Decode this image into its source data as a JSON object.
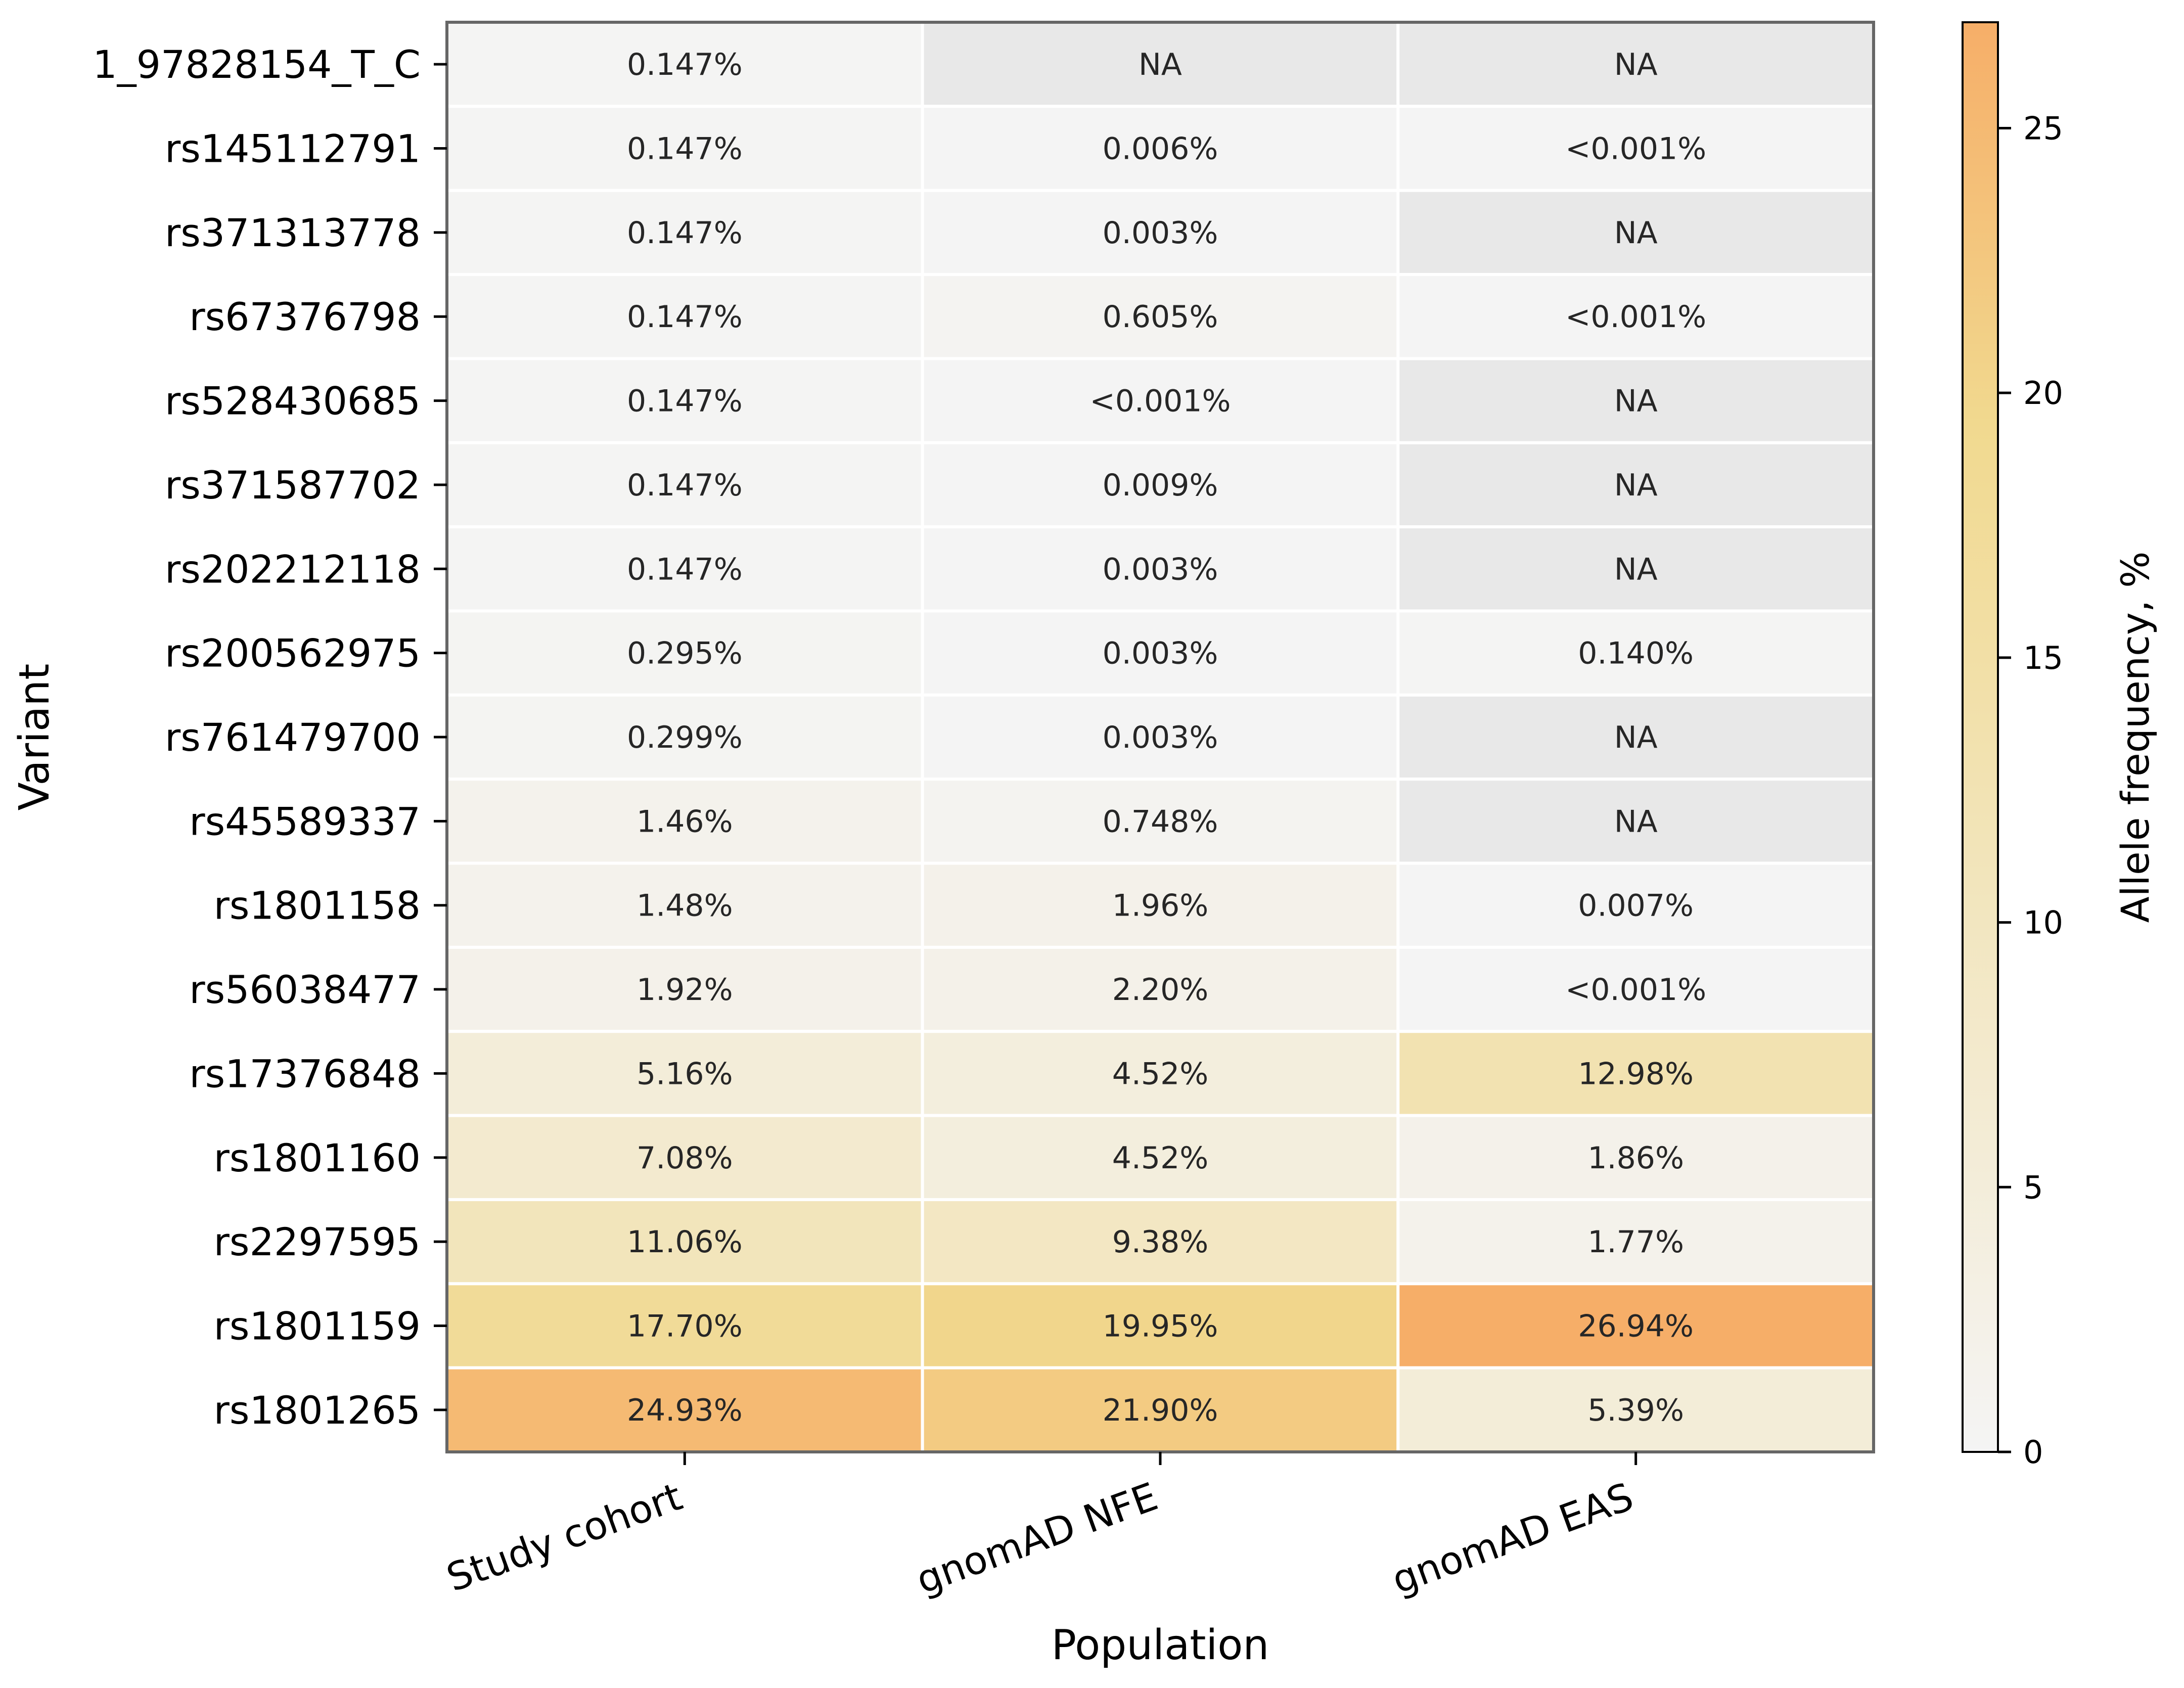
{
  "chart_data": {
    "type": "heatmap",
    "xlabel": "Population",
    "ylabel": "Variant",
    "colorbar_label": "Allele frequency, %",
    "colorbar_ticks": [
      0,
      5,
      10,
      15,
      20,
      25
    ],
    "colorbar_range": [
      0,
      27
    ],
    "colors": {
      "low": "#f4f4f4",
      "mid": "#f1d98f",
      "high": "#f6ae68",
      "na": "#e8e8e8",
      "grid": "#ffffff",
      "frame": "#666666"
    },
    "columns": [
      "Study cohort",
      "gnomAD NFE",
      "gnomAD EAS"
    ],
    "rows": [
      {
        "variant": "1_97828154_T_C",
        "values": [
          0.147,
          null,
          null
        ],
        "labels": [
          "0.147%",
          "NA",
          "NA"
        ]
      },
      {
        "variant": "rs145112791",
        "values": [
          0.147,
          0.006,
          0.0005
        ],
        "labels": [
          "0.147%",
          "0.006%",
          "<0.001%"
        ]
      },
      {
        "variant": "rs371313778",
        "values": [
          0.147,
          0.003,
          null
        ],
        "labels": [
          "0.147%",
          "0.003%",
          "NA"
        ]
      },
      {
        "variant": "rs67376798",
        "values": [
          0.147,
          0.605,
          0.0005
        ],
        "labels": [
          "0.147%",
          "0.605%",
          "<0.001%"
        ]
      },
      {
        "variant": "rs528430685",
        "values": [
          0.147,
          0.0005,
          null
        ],
        "labels": [
          "0.147%",
          "<0.001%",
          "NA"
        ]
      },
      {
        "variant": "rs371587702",
        "values": [
          0.147,
          0.009,
          null
        ],
        "labels": [
          "0.147%",
          "0.009%",
          "NA"
        ]
      },
      {
        "variant": "rs202212118",
        "values": [
          0.147,
          0.003,
          null
        ],
        "labels": [
          "0.147%",
          "0.003%",
          "NA"
        ]
      },
      {
        "variant": "rs200562975",
        "values": [
          0.295,
          0.003,
          0.14
        ],
        "labels": [
          "0.295%",
          "0.003%",
          "0.140%"
        ]
      },
      {
        "variant": "rs761479700",
        "values": [
          0.299,
          0.003,
          null
        ],
        "labels": [
          "0.299%",
          "0.003%",
          "NA"
        ]
      },
      {
        "variant": "rs45589337",
        "values": [
          1.46,
          0.748,
          null
        ],
        "labels": [
          "1.46%",
          "0.748%",
          "NA"
        ]
      },
      {
        "variant": "rs1801158",
        "values": [
          1.48,
          1.96,
          0.007
        ],
        "labels": [
          "1.48%",
          "1.96%",
          "0.007%"
        ]
      },
      {
        "variant": "rs56038477",
        "values": [
          1.92,
          2.2,
          0.0005
        ],
        "labels": [
          "1.92%",
          "2.20%",
          "<0.001%"
        ]
      },
      {
        "variant": "rs17376848",
        "values": [
          5.16,
          4.52,
          12.98
        ],
        "labels": [
          "5.16%",
          "4.52%",
          "12.98%"
        ]
      },
      {
        "variant": "rs1801160",
        "values": [
          7.08,
          4.52,
          1.86
        ],
        "labels": [
          "7.08%",
          "4.52%",
          "1.86%"
        ]
      },
      {
        "variant": "rs2297595",
        "values": [
          11.06,
          9.38,
          1.77
        ],
        "labels": [
          "11.06%",
          "9.38%",
          "1.77%"
        ]
      },
      {
        "variant": "rs1801159",
        "values": [
          17.7,
          19.95,
          26.94
        ],
        "labels": [
          "17.70%",
          "19.95%",
          "26.94%"
        ]
      },
      {
        "variant": "rs1801265",
        "values": [
          24.93,
          21.9,
          5.39
        ],
        "labels": [
          "24.93%",
          "21.90%",
          "5.39%"
        ]
      }
    ]
  }
}
